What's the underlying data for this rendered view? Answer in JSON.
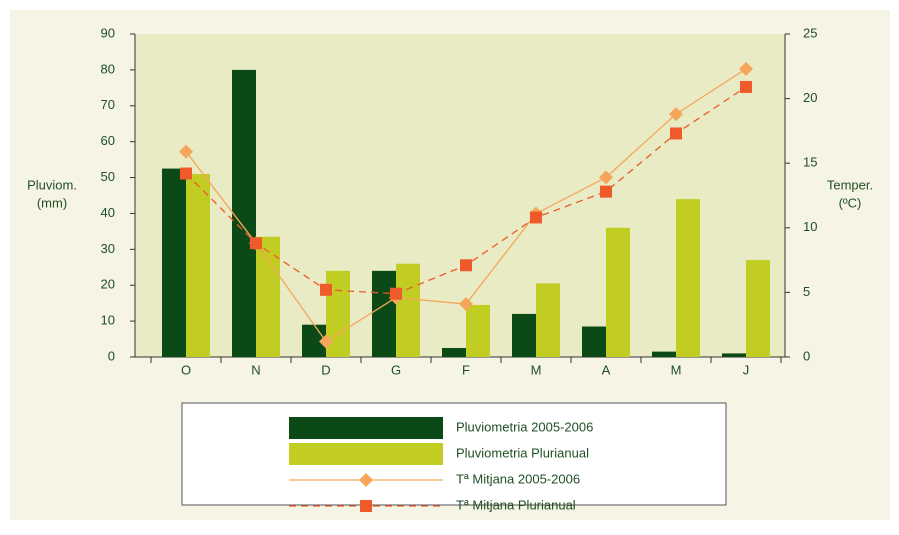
{
  "chart_data": {
    "type": "bar_line",
    "categories": [
      "O",
      "N",
      "D",
      "G",
      "F",
      "M",
      "A",
      "M",
      "J"
    ],
    "ylabel": [
      "Pluviom.",
      "(mm)"
    ],
    "y2label": [
      "Temper.",
      "(ºC)"
    ],
    "ylim": [
      0,
      90
    ],
    "yticks": [
      0,
      10,
      20,
      30,
      40,
      50,
      60,
      70,
      80,
      90
    ],
    "y2lim": [
      0,
      25
    ],
    "y2ticks": [
      0,
      5,
      10,
      15,
      20,
      25
    ],
    "series": [
      {
        "name": "Pluviometria 2005-2006",
        "type": "bar",
        "color": "#0b4a16",
        "values": [
          52.5,
          80,
          9,
          24,
          2.5,
          12,
          8.5,
          1.5,
          1
        ]
      },
      {
        "name": "Pluviometria Plurianual",
        "type": "bar",
        "color": "#c2cd24",
        "values": [
          51,
          33.5,
          24,
          26,
          14.5,
          20.5,
          36,
          44,
          27
        ]
      },
      {
        "name": "Tª Mitjana 2005-2006",
        "type": "line",
        "axis": "y2",
        "color": "#f5a65a",
        "marker": "diamond",
        "dash": false,
        "values": [
          15.9,
          8.8,
          1.2,
          4.6,
          4.1,
          11.1,
          13.9,
          18.8,
          22.3
        ]
      },
      {
        "name": "Tª Mitjana Plurianual",
        "type": "line",
        "axis": "y2",
        "color": "#ef5a2a",
        "marker": "square",
        "dash": true,
        "values": [
          14.2,
          8.8,
          5.2,
          4.9,
          7.1,
          10.8,
          12.8,
          17.3,
          20.9
        ]
      }
    ]
  }
}
